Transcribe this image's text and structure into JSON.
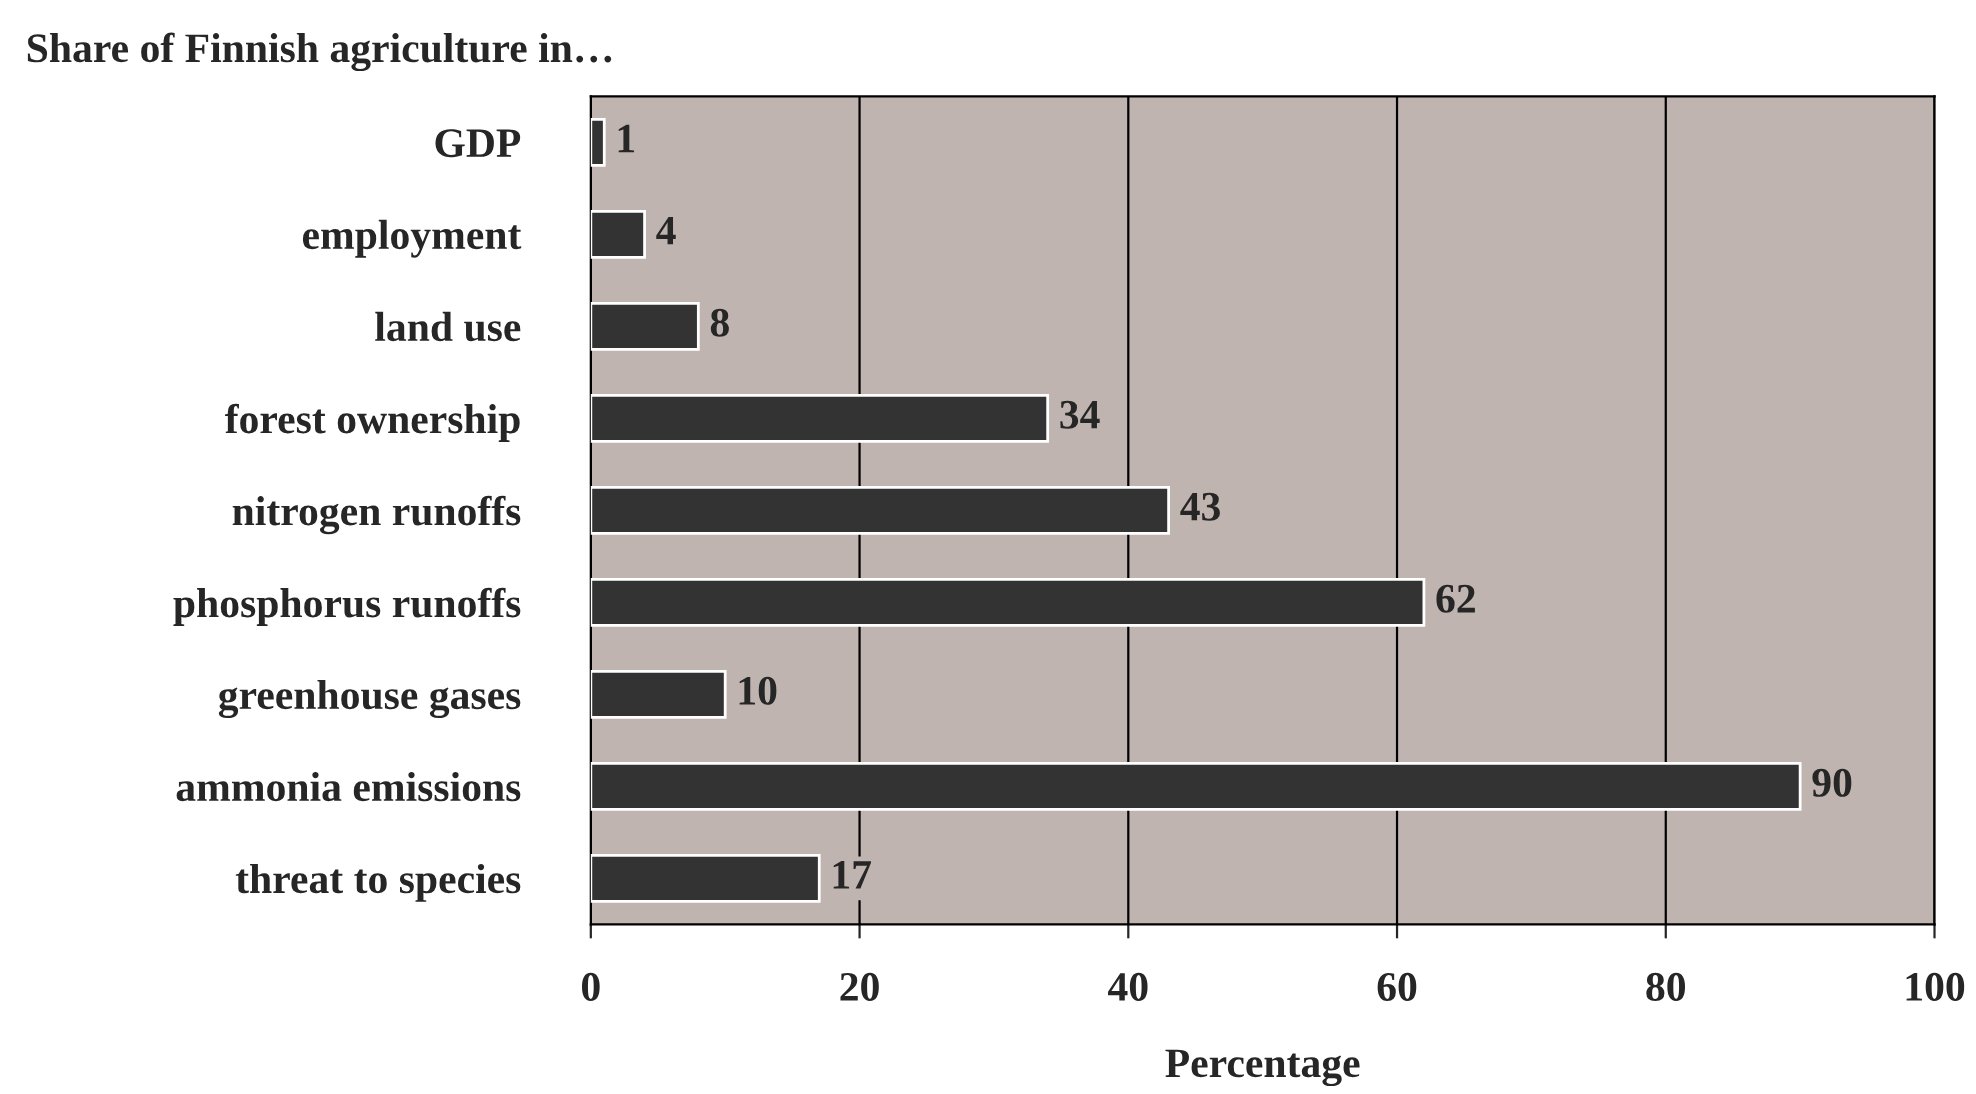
{
  "chart_data": {
    "type": "bar",
    "orientation": "horizontal",
    "title": "Share of Finnish agriculture in…",
    "xlabel": "Percentage",
    "categories": [
      "GDP",
      "employment",
      "land use",
      "forest ownership",
      "nitrogen runoffs",
      "phosphorus runoffs",
      "greenhouse gases",
      "ammonia emissions",
      "threat to species"
    ],
    "values": [
      1,
      4,
      8,
      34,
      43,
      62,
      10,
      90,
      17
    ],
    "color": "#333333",
    "xlim": [
      0,
      100
    ],
    "xticks": [
      0,
      20,
      40,
      60,
      80,
      100
    ],
    "grid": "x",
    "data_labels": true,
    "legend": false
  }
}
